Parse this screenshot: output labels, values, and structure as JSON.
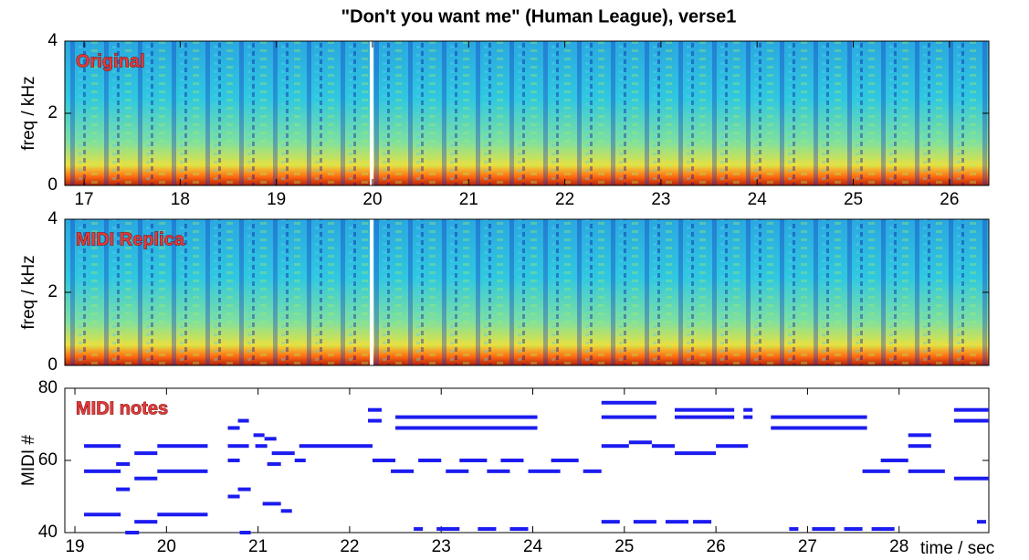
{
  "title": "\"Don't you want me\" (Human League), verse1",
  "chart_data": [
    {
      "type": "spectrogram",
      "annotation": "Original",
      "ylabel": "freq / kHz",
      "xlim": [
        16.8,
        26.41
      ],
      "xticks": [
        17,
        18,
        19,
        20,
        21,
        22,
        23,
        24,
        25,
        26
      ],
      "ylim": [
        0,
        4
      ],
      "yticks": [
        0,
        2,
        4
      ]
    },
    {
      "type": "spectrogram",
      "annotation": "MIDI Replica",
      "ylabel": "freq / kHz",
      "xlim": [
        16.8,
        26.41
      ],
      "ylim": [
        0,
        4
      ],
      "yticks": [
        0,
        2,
        4
      ]
    },
    {
      "type": "pianoroll",
      "annotation": "MIDI notes",
      "ylabel": "MIDI #",
      "xlabel": "time / sec",
      "xlim": [
        18.89,
        28.98
      ],
      "xticks": [
        19,
        20,
        21,
        22,
        23,
        24,
        25,
        26,
        27,
        28
      ],
      "ylim": [
        40,
        80
      ],
      "yticks": [
        40,
        60,
        80
      ],
      "color": "#1c1cf0",
      "notes": [
        {
          "start": 19.1,
          "end": 19.5,
          "pitch": 64
        },
        {
          "start": 19.1,
          "end": 19.5,
          "pitch": 57
        },
        {
          "start": 19.1,
          "end": 19.5,
          "pitch": 45
        },
        {
          "start": 19.45,
          "end": 19.6,
          "pitch": 59
        },
        {
          "start": 19.45,
          "end": 19.6,
          "pitch": 52
        },
        {
          "start": 19.55,
          "end": 19.7,
          "pitch": 40
        },
        {
          "start": 19.65,
          "end": 19.9,
          "pitch": 62
        },
        {
          "start": 19.65,
          "end": 19.9,
          "pitch": 55
        },
        {
          "start": 19.65,
          "end": 19.9,
          "pitch": 43
        },
        {
          "start": 19.9,
          "end": 20.45,
          "pitch": 64
        },
        {
          "start": 19.9,
          "end": 20.45,
          "pitch": 57
        },
        {
          "start": 19.9,
          "end": 20.45,
          "pitch": 45
        },
        {
          "start": 20.67,
          "end": 20.8,
          "pitch": 69
        },
        {
          "start": 20.78,
          "end": 20.9,
          "pitch": 71
        },
        {
          "start": 20.67,
          "end": 20.9,
          "pitch": 64
        },
        {
          "start": 20.67,
          "end": 20.8,
          "pitch": 60
        },
        {
          "start": 20.67,
          "end": 20.8,
          "pitch": 50
        },
        {
          "start": 20.78,
          "end": 20.92,
          "pitch": 52
        },
        {
          "start": 20.8,
          "end": 20.92,
          "pitch": 40
        },
        {
          "start": 20.95,
          "end": 21.07,
          "pitch": 67
        },
        {
          "start": 21.07,
          "end": 21.2,
          "pitch": 66
        },
        {
          "start": 20.97,
          "end": 21.1,
          "pitch": 64
        },
        {
          "start": 21.15,
          "end": 21.4,
          "pitch": 62
        },
        {
          "start": 21.1,
          "end": 21.25,
          "pitch": 59
        },
        {
          "start": 21.05,
          "end": 21.25,
          "pitch": 48
        },
        {
          "start": 21.25,
          "end": 21.37,
          "pitch": 46
        },
        {
          "start": 21.45,
          "end": 22.25,
          "pitch": 64
        },
        {
          "start": 21.4,
          "end": 21.52,
          "pitch": 60
        },
        {
          "start": 22.2,
          "end": 22.35,
          "pitch": 74
        },
        {
          "start": 22.2,
          "end": 22.35,
          "pitch": 71
        },
        {
          "start": 22.25,
          "end": 22.5,
          "pitch": 60
        },
        {
          "start": 22.5,
          "end": 24.05,
          "pitch": 72
        },
        {
          "start": 22.5,
          "end": 24.05,
          "pitch": 69
        },
        {
          "start": 22.45,
          "end": 22.7,
          "pitch": 57
        },
        {
          "start": 22.75,
          "end": 23.0,
          "pitch": 60
        },
        {
          "start": 23.05,
          "end": 23.3,
          "pitch": 57
        },
        {
          "start": 23.2,
          "end": 23.5,
          "pitch": 60
        },
        {
          "start": 23.5,
          "end": 23.75,
          "pitch": 57
        },
        {
          "start": 23.65,
          "end": 23.9,
          "pitch": 60
        },
        {
          "start": 23.95,
          "end": 24.3,
          "pitch": 57
        },
        {
          "start": 24.2,
          "end": 24.5,
          "pitch": 60
        },
        {
          "start": 24.55,
          "end": 24.75,
          "pitch": 57
        },
        {
          "start": 22.7,
          "end": 22.8,
          "pitch": 41
        },
        {
          "start": 22.95,
          "end": 23.2,
          "pitch": 41
        },
        {
          "start": 23.4,
          "end": 23.6,
          "pitch": 41
        },
        {
          "start": 23.75,
          "end": 23.95,
          "pitch": 41
        },
        {
          "start": 24.75,
          "end": 25.35,
          "pitch": 76
        },
        {
          "start": 24.75,
          "end": 25.35,
          "pitch": 72
        },
        {
          "start": 24.75,
          "end": 25.05,
          "pitch": 64
        },
        {
          "start": 25.05,
          "end": 25.3,
          "pitch": 65
        },
        {
          "start": 25.3,
          "end": 25.55,
          "pitch": 64
        },
        {
          "start": 24.75,
          "end": 24.95,
          "pitch": 43
        },
        {
          "start": 25.1,
          "end": 25.35,
          "pitch": 43
        },
        {
          "start": 25.45,
          "end": 25.7,
          "pitch": 43
        },
        {
          "start": 25.75,
          "end": 25.95,
          "pitch": 43
        },
        {
          "start": 25.55,
          "end": 26.0,
          "pitch": 62
        },
        {
          "start": 25.55,
          "end": 26.2,
          "pitch": 74
        },
        {
          "start": 26.3,
          "end": 26.4,
          "pitch": 74
        },
        {
          "start": 25.55,
          "end": 26.2,
          "pitch": 72
        },
        {
          "start": 26.3,
          "end": 26.4,
          "pitch": 72
        },
        {
          "start": 26.0,
          "end": 26.35,
          "pitch": 64
        },
        {
          "start": 26.6,
          "end": 27.65,
          "pitch": 72
        },
        {
          "start": 26.6,
          "end": 27.65,
          "pitch": 69
        },
        {
          "start": 27.6,
          "end": 27.9,
          "pitch": 57
        },
        {
          "start": 27.8,
          "end": 28.1,
          "pitch": 60
        },
        {
          "start": 28.1,
          "end": 28.5,
          "pitch": 57
        },
        {
          "start": 26.8,
          "end": 26.9,
          "pitch": 41
        },
        {
          "start": 27.05,
          "end": 27.3,
          "pitch": 41
        },
        {
          "start": 27.4,
          "end": 27.6,
          "pitch": 41
        },
        {
          "start": 27.7,
          "end": 27.95,
          "pitch": 41
        },
        {
          "start": 28.1,
          "end": 28.35,
          "pitch": 67
        },
        {
          "start": 28.1,
          "end": 28.35,
          "pitch": 64
        },
        {
          "start": 28.6,
          "end": 28.98,
          "pitch": 74
        },
        {
          "start": 28.6,
          "end": 28.98,
          "pitch": 71
        },
        {
          "start": 28.6,
          "end": 28.98,
          "pitch": 55
        },
        {
          "start": 28.85,
          "end": 28.95,
          "pitch": 43
        }
      ]
    }
  ]
}
